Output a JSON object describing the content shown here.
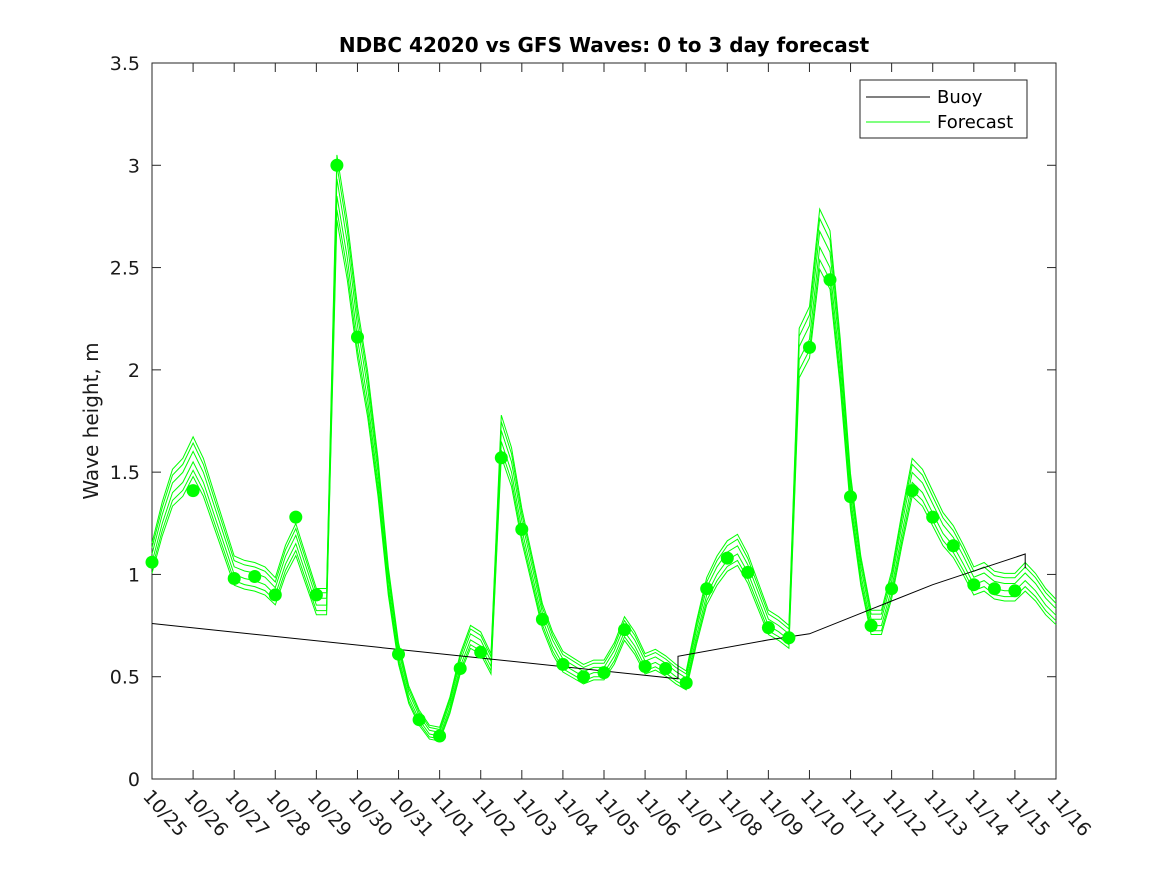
{
  "chart_data": {
    "type": "line",
    "title": "NDBC 42020 vs GFS Waves: 0 to 3 day forecast",
    "xlabel": "",
    "ylabel": "Wave height, m",
    "ylim": [
      0,
      3.5
    ],
    "xlim": [
      0,
      22
    ],
    "yticks": [
      "0",
      "0.5",
      "1",
      "1.5",
      "2",
      "2.5",
      "3",
      "3.5"
    ],
    "ytick_values": [
      0,
      0.5,
      1,
      1.5,
      2,
      2.5,
      3,
      3.5
    ],
    "categories": [
      "10/25",
      "10/26",
      "10/27",
      "10/28",
      "10/29",
      "10/30",
      "10/31",
      "11/01",
      "11/02",
      "11/03",
      "11/04",
      "11/05",
      "11/06",
      "11/07",
      "11/08",
      "11/09",
      "11/10",
      "11/11",
      "11/12",
      "11/13",
      "11/14",
      "11/15",
      "11/16"
    ],
    "legend": {
      "placement": "top-right",
      "entries": [
        "Buoy",
        "Forecast"
      ]
    },
    "colors": {
      "buoy": "#000000",
      "forecast": "#00ff00",
      "axis": "#262626"
    },
    "series": [
      {
        "name": "Buoy",
        "x": [
          0,
          12.8,
          12.8,
          15.0,
          16.0,
          17.5,
          19.0,
          20.5,
          21.25,
          21.25
        ],
        "values": [
          0.76,
          0.49,
          0.6,
          0.68,
          0.71,
          0.83,
          0.95,
          1.05,
          1.1,
          1.03
        ]
      },
      {
        "name": "Forecast",
        "x": [
          0,
          0.25,
          0.5,
          0.75,
          1,
          1.25,
          1.5,
          1.75,
          2,
          2.25,
          2.5,
          2.75,
          3,
          3.25,
          3.5,
          3.75,
          4,
          4.25,
          4.5,
          4.75,
          5,
          5.25,
          5.5,
          5.75,
          6,
          6.25,
          6.5,
          6.75,
          7,
          7.25,
          7.5,
          7.75,
          8,
          8.25,
          8.5,
          8.75,
          9,
          9.25,
          9.5,
          9.75,
          10,
          10.25,
          10.5,
          10.75,
          11,
          11.25,
          11.5,
          11.75,
          12,
          12.25,
          12.5,
          12.75,
          13,
          13.25,
          13.5,
          13.75,
          14,
          14.25,
          14.5,
          14.75,
          15,
          15.25,
          15.5,
          15.75,
          16,
          16.25,
          16.5,
          16.75,
          17,
          17.25,
          17.5,
          17.75,
          18,
          18.25,
          18.5,
          18.75,
          19,
          19.25,
          19.5,
          19.75,
          20,
          20.25,
          20.5,
          20.75,
          21,
          21.25,
          21.5,
          21.75,
          22
        ],
        "values": [
          1.06,
          1.25,
          1.4,
          1.45,
          1.55,
          1.45,
          1.3,
          1.15,
          1.0,
          0.98,
          0.97,
          0.95,
          0.9,
          1.05,
          1.15,
          1.0,
          0.85,
          0.85,
          2.85,
          2.55,
          2.15,
          1.85,
          1.45,
          0.95,
          0.6,
          0.4,
          0.29,
          0.22,
          0.21,
          0.35,
          0.55,
          0.68,
          0.65,
          0.55,
          1.65,
          1.5,
          1.22,
          1.0,
          0.78,
          0.65,
          0.56,
          0.53,
          0.5,
          0.52,
          0.52,
          0.6,
          0.72,
          0.65,
          0.55,
          0.57,
          0.54,
          0.5,
          0.47,
          0.7,
          0.9,
          1.0,
          1.07,
          1.1,
          1.01,
          0.88,
          0.75,
          0.72,
          0.68,
          2.05,
          2.15,
          2.6,
          2.5,
          2.0,
          1.38,
          1.0,
          0.75,
          0.75,
          0.93,
          1.2,
          1.45,
          1.4,
          1.3,
          1.2,
          1.14,
          1.05,
          0.95,
          0.97,
          0.93,
          0.92,
          0.92,
          0.97,
          0.92,
          0.85,
          0.8
        ]
      }
    ],
    "forecast_markers": {
      "x": [
        0,
        1,
        2,
        2.5,
        3,
        3.5,
        4,
        4.5,
        5,
        6,
        6.5,
        7,
        7.5,
        8,
        8.5,
        9,
        9.5,
        10,
        10.5,
        11,
        11.5,
        12,
        12.5,
        13,
        13.5,
        14,
        14.5,
        15,
        15.5,
        16,
        16.5,
        17,
        17.5,
        18,
        18.5,
        19,
        19.5,
        20,
        20.5,
        21
      ],
      "values": [
        1.06,
        1.41,
        0.98,
        0.99,
        0.9,
        1.28,
        0.9,
        3.0,
        2.16,
        0.61,
        0.29,
        0.21,
        0.54,
        0.62,
        1.57,
        1.22,
        0.78,
        0.56,
        0.5,
        0.52,
        0.73,
        0.55,
        0.54,
        0.47,
        0.93,
        1.08,
        1.01,
        0.74,
        0.69,
        2.11,
        2.44,
        1.38,
        0.75,
        0.93,
        1.41,
        1.28,
        1.14,
        0.95,
        0.93,
        0.92
      ]
    }
  }
}
